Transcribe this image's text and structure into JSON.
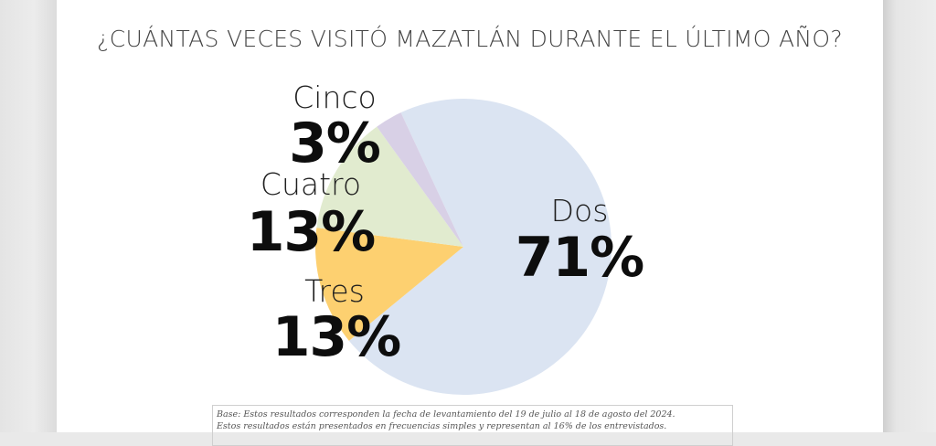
{
  "chart_data": {
    "type": "pie",
    "title": "¿CUÁNTAS VECES VISITÓ MAZATLÁN DURANTE EL ÚLTIMO AÑO?",
    "slices": [
      {
        "label": "Dos",
        "value": 71,
        "display": "71%",
        "color": "#dbe4f2"
      },
      {
        "label": "Tres",
        "value": 13,
        "display": "13%",
        "color": "#fdd070"
      },
      {
        "label": "Cuatro",
        "value": 13,
        "display": "13%",
        "color": "#e1ebcf"
      },
      {
        "label": "Cinco",
        "value": 3,
        "display": "3%",
        "color": "#d8d0e6"
      }
    ]
  },
  "footnote": {
    "line1": "Base: Estos resultados corresponden la fecha de levantamiento del 19 de julio al 18 de agosto del 2024.",
    "line2": "Estos resultados están presentados en frecuencias simples y representan al 16% de los entrevistados."
  }
}
